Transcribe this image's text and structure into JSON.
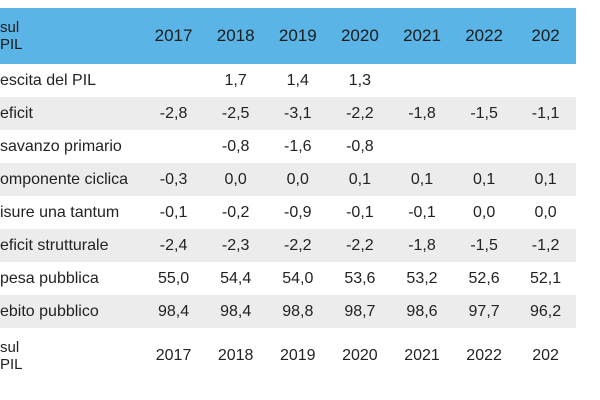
{
  "header": {
    "corner_line1": "sul",
    "corner_line2": "PIL",
    "years": [
      "2017",
      "2018",
      "2019",
      "2020",
      "2021",
      "2022",
      "202"
    ]
  },
  "rows": [
    {
      "label": "escita del PIL",
      "values": [
        "",
        "1,7",
        "1,4",
        "1,3",
        "",
        "",
        ""
      ]
    },
    {
      "label": "eficit",
      "values": [
        "-2,8",
        "-2,5",
        "-3,1",
        "-2,2",
        "-1,8",
        "-1,5",
        "-1,1"
      ]
    },
    {
      "label": "savanzo primario",
      "values": [
        "",
        "-0,8",
        "-1,6",
        "-0,8",
        "",
        "",
        ""
      ]
    },
    {
      "label": "omponente ciclica",
      "values": [
        "-0,3",
        "0,0",
        "0,0",
        "0,1",
        "0,1",
        "0,1",
        "0,1"
      ]
    },
    {
      "label": "isure una tantum",
      "values": [
        "-0,1",
        "-0,2",
        "-0,9",
        "-0,1",
        "-0,1",
        "0,0",
        "0,0"
      ]
    },
    {
      "label": "eficit strutturale",
      "values": [
        "-2,4",
        "-2,3",
        "-2,2",
        "-2,2",
        "-1,8",
        "-1,5",
        "-1,2"
      ]
    },
    {
      "label": "pesa pubblica",
      "values": [
        "55,0",
        "54,4",
        "54,0",
        "53,6",
        "53,2",
        "52,6",
        "52,1"
      ]
    },
    {
      "label": "ebito pubblico",
      "values": [
        "98,4",
        "98,4",
        "98,8",
        "98,7",
        "98,6",
        "97,7",
        "96,2"
      ]
    }
  ],
  "footer": {
    "corner_line1": "sul",
    "corner_line2": "PIL",
    "years": [
      "2017",
      "2018",
      "2019",
      "2020",
      "2021",
      "2022",
      "202"
    ]
  },
  "colors": {
    "header_bg": "#5ab4e5",
    "stripe_bg": "#ececec"
  }
}
